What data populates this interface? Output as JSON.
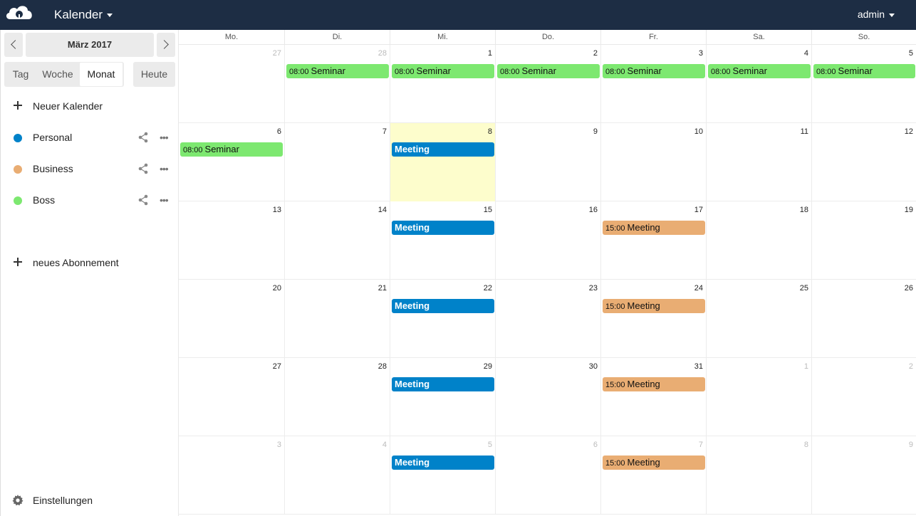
{
  "header": {
    "app_title": "Kalender",
    "user": "admin"
  },
  "sidebar": {
    "month_label": "März 2017",
    "views": {
      "day": "Tag",
      "week": "Woche",
      "month": "Monat",
      "today": "Heute"
    },
    "new_calendar": "Neuer Kalender",
    "calendars": [
      {
        "name": "Personal",
        "color": "#0082c9"
      },
      {
        "name": "Business",
        "color": "#e9ad73"
      },
      {
        "name": "Boss",
        "color": "#7de870"
      }
    ],
    "new_subscription": "neues Abonnement",
    "settings": "Einstellungen"
  },
  "calendar": {
    "weekdays": [
      "Mo.",
      "Di.",
      "Mi.",
      "Do.",
      "Fr.",
      "Sa.",
      "So."
    ],
    "weeks": [
      [
        {
          "day": "27",
          "other": true,
          "events": []
        },
        {
          "day": "28",
          "other": true,
          "events": [
            {
              "time": "08:00",
              "title": "Seminar",
              "cal": "boss"
            }
          ]
        },
        {
          "day": "1",
          "events": [
            {
              "time": "08:00",
              "title": "Seminar",
              "cal": "boss"
            }
          ]
        },
        {
          "day": "2",
          "events": [
            {
              "time": "08:00",
              "title": "Seminar",
              "cal": "boss"
            }
          ]
        },
        {
          "day": "3",
          "events": [
            {
              "time": "08:00",
              "title": "Seminar",
              "cal": "boss"
            }
          ]
        },
        {
          "day": "4",
          "events": [
            {
              "time": "08:00",
              "title": "Seminar",
              "cal": "boss"
            }
          ]
        },
        {
          "day": "5",
          "events": [
            {
              "time": "08:00",
              "title": "Seminar",
              "cal": "boss"
            }
          ]
        }
      ],
      [
        {
          "day": "6",
          "events": [
            {
              "time": "08:00",
              "title": "Seminar",
              "cal": "boss"
            }
          ]
        },
        {
          "day": "7",
          "events": []
        },
        {
          "day": "8",
          "today": true,
          "events": [
            {
              "time": "",
              "title": "Meeting",
              "cal": "personal"
            }
          ]
        },
        {
          "day": "9",
          "events": []
        },
        {
          "day": "10",
          "events": []
        },
        {
          "day": "11",
          "events": []
        },
        {
          "day": "12",
          "events": []
        }
      ],
      [
        {
          "day": "13",
          "events": []
        },
        {
          "day": "14",
          "events": []
        },
        {
          "day": "15",
          "events": [
            {
              "time": "",
              "title": "Meeting",
              "cal": "personal"
            }
          ]
        },
        {
          "day": "16",
          "events": []
        },
        {
          "day": "17",
          "events": [
            {
              "time": "15:00",
              "title": "Meeting",
              "cal": "business"
            }
          ]
        },
        {
          "day": "18",
          "events": []
        },
        {
          "day": "19",
          "events": []
        }
      ],
      [
        {
          "day": "20",
          "events": []
        },
        {
          "day": "21",
          "events": []
        },
        {
          "day": "22",
          "events": [
            {
              "time": "",
              "title": "Meeting",
              "cal": "personal"
            }
          ]
        },
        {
          "day": "23",
          "events": []
        },
        {
          "day": "24",
          "events": [
            {
              "time": "15:00",
              "title": "Meeting",
              "cal": "business"
            }
          ]
        },
        {
          "day": "25",
          "events": []
        },
        {
          "day": "26",
          "events": []
        }
      ],
      [
        {
          "day": "27",
          "events": []
        },
        {
          "day": "28",
          "events": []
        },
        {
          "day": "29",
          "events": [
            {
              "time": "",
              "title": "Meeting",
              "cal": "personal"
            }
          ]
        },
        {
          "day": "30",
          "events": []
        },
        {
          "day": "31",
          "events": [
            {
              "time": "15:00",
              "title": "Meeting",
              "cal": "business"
            }
          ]
        },
        {
          "day": "1",
          "other": true,
          "events": []
        },
        {
          "day": "2",
          "other": true,
          "events": []
        }
      ],
      [
        {
          "day": "3",
          "other": true,
          "events": []
        },
        {
          "day": "4",
          "other": true,
          "events": []
        },
        {
          "day": "5",
          "other": true,
          "events": [
            {
              "time": "",
              "title": "Meeting",
              "cal": "personal"
            }
          ]
        },
        {
          "day": "6",
          "other": true,
          "events": []
        },
        {
          "day": "7",
          "other": true,
          "events": [
            {
              "time": "15:00",
              "title": "Meeting",
              "cal": "business"
            }
          ]
        },
        {
          "day": "8",
          "other": true,
          "events": []
        },
        {
          "day": "9",
          "other": true,
          "events": []
        }
      ]
    ]
  }
}
